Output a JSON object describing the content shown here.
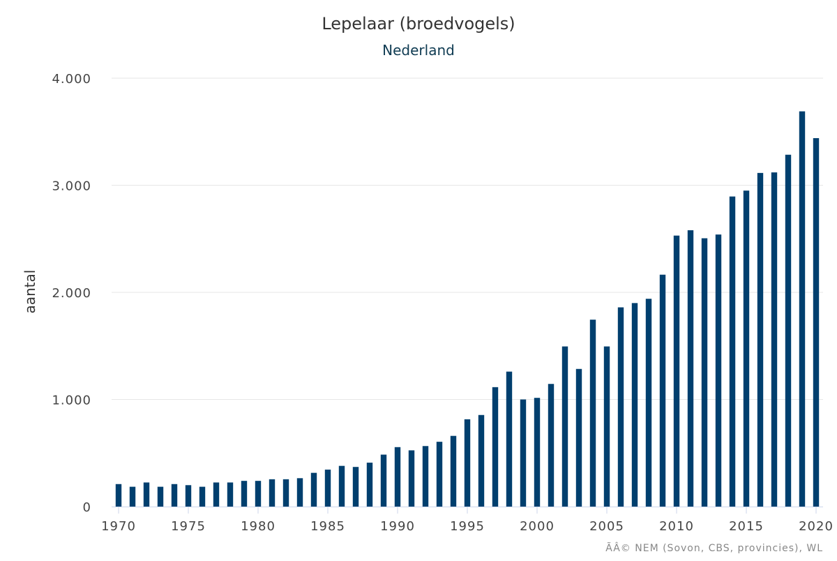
{
  "chart_data": {
    "type": "bar",
    "title": "Lepelaar (broedvogels)",
    "subtitle": "Nederland",
    "xlabel": "",
    "ylabel": "aantal",
    "credit": "ÃÂ© NEM (Sovon, CBS, provincies), WL",
    "ylim": [
      0,
      4000
    ],
    "yticks": [
      0,
      1000,
      2000,
      3000,
      4000
    ],
    "ytick_labels": [
      "0",
      "1.000",
      "2.000",
      "3.000",
      "4.000"
    ],
    "xticks": [
      1970,
      1975,
      1980,
      1985,
      1990,
      1995,
      2000,
      2005,
      2010,
      2015,
      2020
    ],
    "xtick_labels": [
      "1970",
      "1975",
      "1980",
      "1985",
      "1990",
      "1995",
      "2000",
      "2005",
      "2010",
      "2015",
      "2020"
    ],
    "grid": true,
    "bar_color": "#003f6e",
    "categories": [
      1970,
      1971,
      1972,
      1973,
      1974,
      1975,
      1976,
      1977,
      1978,
      1979,
      1980,
      1981,
      1982,
      1983,
      1984,
      1985,
      1986,
      1987,
      1988,
      1989,
      1990,
      1991,
      1992,
      1993,
      1994,
      1995,
      1996,
      1997,
      1998,
      1999,
      2000,
      2001,
      2002,
      2003,
      2004,
      2005,
      2006,
      2007,
      2008,
      2009,
      2010,
      2011,
      2012,
      2013,
      2014,
      2015,
      2016,
      2017,
      2018,
      2019,
      2020
    ],
    "values": [
      210,
      185,
      225,
      185,
      210,
      200,
      185,
      225,
      225,
      240,
      240,
      255,
      255,
      265,
      315,
      345,
      380,
      370,
      410,
      485,
      555,
      525,
      565,
      605,
      660,
      815,
      855,
      1115,
      1260,
      1000,
      1015,
      1145,
      1495,
      1285,
      1745,
      1495,
      1860,
      1900,
      1940,
      2165,
      2530,
      2580,
      2505,
      2540,
      2895,
      2950,
      3115,
      3120,
      3285,
      3690,
      3440
    ]
  }
}
